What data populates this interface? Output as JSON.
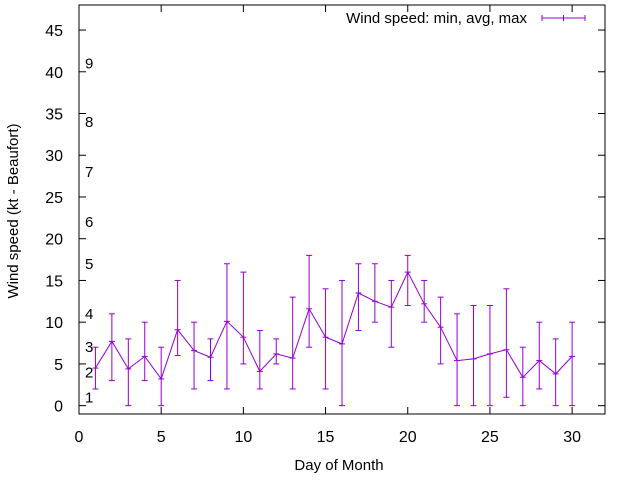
{
  "chart_data": {
    "type": "line",
    "title": "",
    "xlabel": "Day of Month",
    "ylabel": "Wind speed (kt - Beaufort)",
    "xlim": [
      0,
      32
    ],
    "ylim": [
      -1,
      48
    ],
    "xticks": [
      0,
      5,
      10,
      15,
      20,
      25,
      30
    ],
    "yticks": [
      0,
      5,
      10,
      15,
      20,
      25,
      30,
      35,
      40,
      45
    ],
    "grid": false,
    "legend_position": "top-right",
    "series": [
      {
        "name": "Wind speed: min, avg, max",
        "color": "#9400d3",
        "x": [
          1,
          2,
          3,
          4,
          5,
          6,
          7,
          8,
          9,
          10,
          11,
          12,
          13,
          14,
          15,
          16,
          17,
          18,
          19,
          20,
          21,
          22,
          23,
          24,
          25,
          26,
          27,
          28,
          29,
          30
        ],
        "avg": [
          4.5,
          7.7,
          4.4,
          5.9,
          3.2,
          9.1,
          6.6,
          5.8,
          10.1,
          8.2,
          4.1,
          6.2,
          5.7,
          11.6,
          8.2,
          7.4,
          13.5,
          12.5,
          11.8,
          16.0,
          12.2,
          9.4,
          5.4,
          5.6,
          6.2,
          6.7,
          3.4,
          5.4,
          3.8,
          5.9
        ],
        "min": [
          2,
          3,
          0,
          3,
          0,
          6,
          2,
          3,
          2,
          5,
          2,
          5,
          2,
          7,
          2,
          0,
          9,
          10,
          7,
          12,
          10,
          5,
          0,
          0,
          0,
          1,
          0,
          2,
          0,
          0
        ],
        "max": [
          7,
          11,
          8,
          10,
          7,
          15,
          10,
          8,
          17,
          16,
          9,
          8,
          13,
          18,
          14,
          15,
          17,
          17,
          15,
          18,
          15,
          13,
          11,
          12,
          12,
          14,
          7,
          10,
          8,
          10
        ]
      }
    ],
    "annotations": [
      {
        "text": "1",
        "y": 1
      },
      {
        "text": "2",
        "y": 4
      },
      {
        "text": "3",
        "y": 7
      },
      {
        "text": "4",
        "y": 11
      },
      {
        "text": "5",
        "y": 17
      },
      {
        "text": "6",
        "y": 22
      },
      {
        "text": "7",
        "y": 28
      },
      {
        "text": "8",
        "y": 34
      },
      {
        "text": "9",
        "y": 41
      }
    ]
  }
}
